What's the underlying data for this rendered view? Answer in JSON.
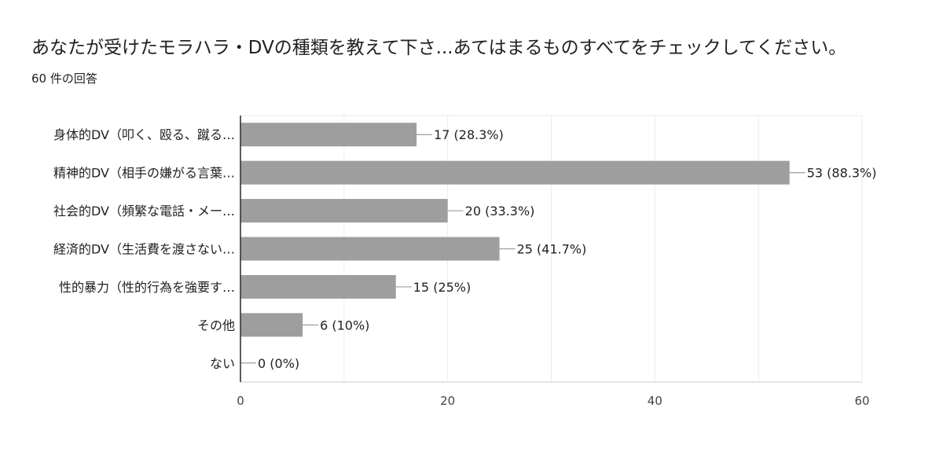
{
  "question": {
    "title": "あなたが受けたモラハラ・DVの種類を教えて下さ...あてはまるものすべてをチェックしてください。",
    "response_count": "60 件の回答"
  },
  "chart_data": {
    "type": "bar",
    "orientation": "horizontal",
    "categories": [
      "身体的DV（叩く、殴る、蹴る…",
      "精神的DV（相手の嫌がる言葉…",
      "社会的DV（頻繁な電話・メー…",
      "経済的DV（生活費を渡さない…",
      "性的暴力（性的行為を強要す…",
      "その他",
      "ない"
    ],
    "values": [
      17,
      53,
      20,
      25,
      15,
      6,
      0
    ],
    "data_labels": [
      "17 (28.3%)",
      "53 (88.3%)",
      "20 (33.3%)",
      "25 (41.7%)",
      "15 (25%)",
      "6 (10%)",
      "0 (0%)"
    ],
    "xlim": [
      0,
      60
    ],
    "x_ticks": [
      0,
      20,
      40,
      60
    ],
    "grid": true,
    "colors": {
      "bar": "#9e9e9e",
      "axis": "#333333",
      "grid": "#ebebeb",
      "text": "#202124"
    }
  }
}
